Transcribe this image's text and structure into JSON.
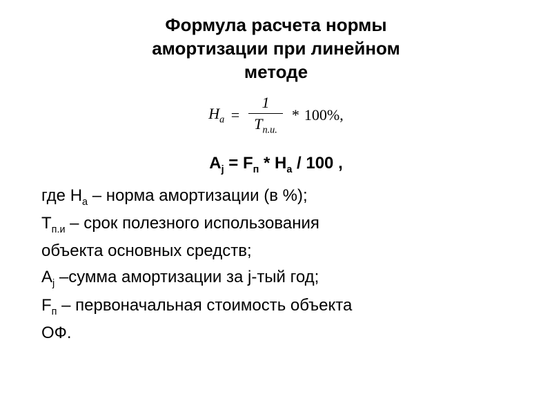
{
  "title": {
    "line1": "Формула расчета нормы",
    "line2": "амортизации при линейном",
    "line3": "методе"
  },
  "formula_main": {
    "lhs_var": "Н",
    "lhs_sub": "а",
    "equals": "=",
    "numerator": "1",
    "denom_var": "Т",
    "denom_sub": "п.и.",
    "mult": "*",
    "percent": "100%,"
  },
  "formula_second": {
    "A": "А",
    "A_sub": "j",
    "eq": " = ",
    "F": "F",
    "F_sub": "п",
    "mult": " * ",
    "H": "Н",
    "H_sub": "а",
    "div": " / 100 ,"
  },
  "definitions": [
    {
      "prefix": "где ",
      "var": "Н",
      "sub": "а",
      "text": " – норма амортизации (в %);"
    },
    {
      "prefix": "",
      "var": "Т",
      "sub": "п.и",
      "text": " – срок полезного использования"
    },
    {
      "prefix": "",
      "var": "",
      "sub": "",
      "text": "объекта основных средств;"
    },
    {
      "prefix": "",
      "var": "А",
      "sub": "j",
      "text": " –сумма амортизации за j-тый год;"
    },
    {
      "prefix": "",
      "var": "F",
      "sub": "п",
      "text": " – первоначальная стоимость объекта"
    },
    {
      "prefix": "",
      "var": "",
      "sub": "",
      "text": "ОФ."
    }
  ],
  "colors": {
    "text": "#000000",
    "bg": "#ffffff"
  }
}
